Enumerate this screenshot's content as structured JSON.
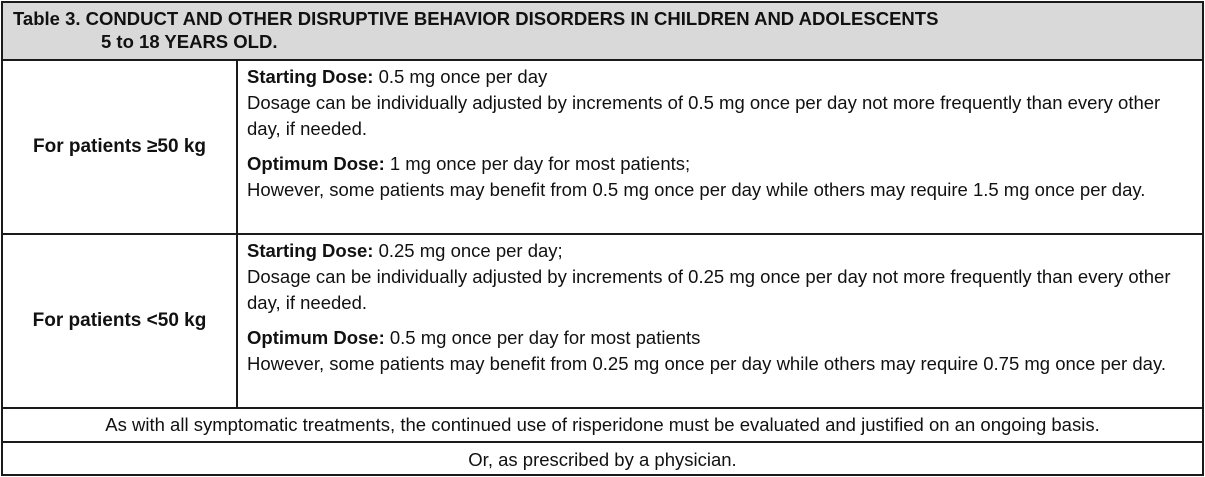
{
  "table": {
    "title_line1": "Table 3. CONDUCT AND OTHER DISRUPTIVE BEHAVIOR DISORDERS IN CHILDREN AND ADOLESCENTS",
    "title_line2": "5 to 18 YEARS OLD.",
    "rows": [
      {
        "label": "For patients ≥50 kg",
        "starting_label": "Starting Dose:",
        "starting_value": " 0.5 mg once per day",
        "starting_detail": "Dosage can be individually adjusted by increments of 0.5 mg once per day not more frequently than every other day, if needed.",
        "optimum_label": "Optimum Dose:",
        "optimum_value": " 1 mg once per day for most patients;",
        "optimum_detail": "However, some patients may benefit from 0.5 mg once per day while others may require 1.5 mg once per day."
      },
      {
        "label": "For patients <50 kg",
        "starting_label": "Starting Dose:",
        "starting_value": " 0.25 mg once per day;",
        "starting_detail": "Dosage can be individually adjusted by increments of 0.25 mg once per day not more frequently than every other day, if needed.",
        "optimum_label": "Optimum Dose:",
        "optimum_value": " 0.5 mg once per day for most patients",
        "optimum_detail": "However, some patients may benefit from 0.25 mg once per day while others may require 0.75 mg once per day."
      }
    ],
    "note": "As with all symptomatic treatments, the continued use of risperidone must be evaluated and justified on an ongoing basis.",
    "footer": "Or, as prescribed by a physician."
  }
}
